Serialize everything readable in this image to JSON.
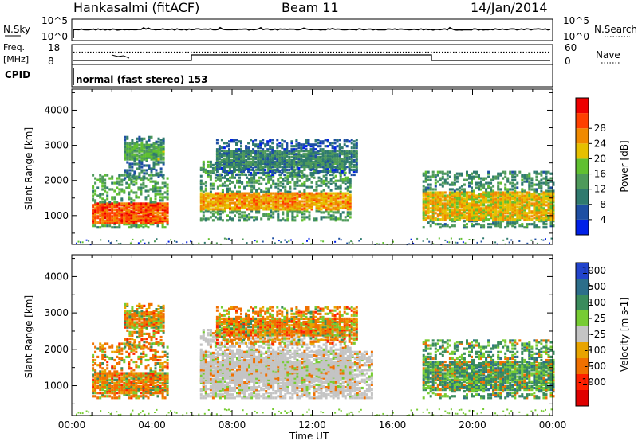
{
  "header": {
    "station": "Hankasalmi (fitACF)",
    "beam": "Beam 11",
    "date": "14/Jan/2014"
  },
  "panels": {
    "nsky": {
      "label": "N.Sky",
      "top_tick": "10^5",
      "bottom_tick": "10^0",
      "right_label": "N.Search",
      "right_top_tick": "10^5",
      "right_bottom_tick": "10^0"
    },
    "freq": {
      "label_top": "Freq.",
      "label_unit": "[MHz]",
      "left_top_tick": "18",
      "left_bottom_tick": "8",
      "right_label": "Nave",
      "right_top_tick": "60",
      "right_bottom_tick": "0"
    },
    "cpid": {
      "label": "CPID",
      "mode_text": "normal (fast stereo) 153"
    }
  },
  "colors": {
    "power_scale": [
      "#0020e8",
      "#1e4fa3",
      "#2f7a6e",
      "#4e9a5a",
      "#60c030",
      "#e6c000",
      "#f08a00",
      "#ff4000",
      "#ee0000"
    ],
    "velocity_scale": [
      "#2244cc",
      "#2c6e8a",
      "#3a8c5c",
      "#77cc33",
      "#c4c4c4",
      "#e8a400",
      "#f07000",
      "#ff2000",
      "#e00000"
    ]
  },
  "chart_data": [
    {
      "type": "heatmap",
      "title": "Power",
      "xlabel": "Time UT",
      "ylabel": "Slant Range [km]",
      "x_ticks": [
        "00:00",
        "04:00",
        "08:00",
        "12:00",
        "16:00",
        "20:00",
        "00:00"
      ],
      "xlim_hours": [
        0,
        24
      ],
      "y_ticks": [
        1000,
        2000,
        3000,
        4000
      ],
      "ylim": [
        180,
        4600
      ],
      "colorbar": {
        "label": "Power [dB]",
        "ticks": [
          4,
          8,
          12,
          16,
          20,
          24,
          28
        ],
        "range": [
          0,
          32
        ]
      },
      "echo_regions": [
        {
          "t": [
            1.0,
            4.8
          ],
          "r": [
            700,
            2200
          ],
          "core": [
            800,
            1400
          ],
          "peak": 30
        },
        {
          "t": [
            2.6,
            4.6
          ],
          "r": [
            2100,
            3300
          ],
          "core": [
            2600,
            3100
          ],
          "peak": 18
        },
        {
          "t": [
            6.4,
            13.9
          ],
          "r": [
            900,
            2600
          ],
          "core": [
            1200,
            1700
          ],
          "peak": 26
        },
        {
          "t": [
            7.2,
            14.2
          ],
          "r": [
            2200,
            3200
          ],
          "core": [
            2400,
            2900
          ],
          "peak": 14
        },
        {
          "t": [
            17.5,
            24.0
          ],
          "r": [
            700,
            2300
          ],
          "core": [
            900,
            1700
          ],
          "peak": 24
        }
      ]
    },
    {
      "type": "heatmap",
      "title": "Velocity",
      "xlabel": "Time UT",
      "ylabel": "Slant Range [km]",
      "x_ticks": [
        "00:00",
        "04:00",
        "08:00",
        "12:00",
        "16:00",
        "20:00",
        "00:00"
      ],
      "xlim_hours": [
        0,
        24
      ],
      "y_ticks": [
        1000,
        2000,
        3000,
        4000
      ],
      "ylim": [
        180,
        4600
      ],
      "colorbar": {
        "label": "Velocity [m s-1]",
        "ticks": [
          1000,
          500,
          100,
          25,
          -25,
          -100,
          -500,
          -1000
        ]
      },
      "echo_regions": [
        {
          "t": [
            1.0,
            4.8
          ],
          "r": [
            700,
            2200
          ],
          "dominant": "negative"
        },
        {
          "t": [
            2.6,
            4.6
          ],
          "r": [
            2100,
            3300
          ],
          "dominant": "negative"
        },
        {
          "t": [
            6.4,
            15.0
          ],
          "r": [
            700,
            2000
          ],
          "dominant": "ground-scatter"
        },
        {
          "t": [
            7.2,
            14.2
          ],
          "r": [
            2200,
            3200
          ],
          "dominant": "negative"
        },
        {
          "t": [
            17.5,
            24.0
          ],
          "r": [
            700,
            2000
          ],
          "dominant": "positive"
        }
      ]
    }
  ]
}
